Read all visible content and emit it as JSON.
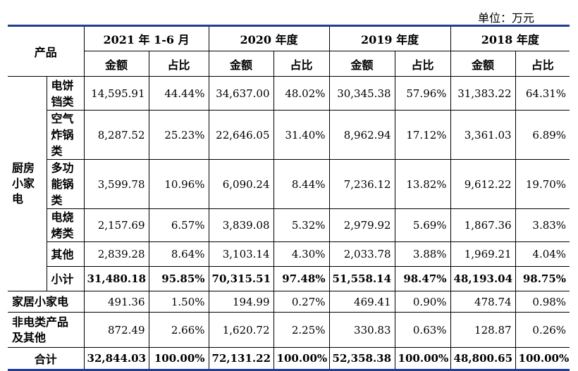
{
  "unit_label": "单位：万元",
  "headers": {
    "product": "产品",
    "periods": [
      "2021 年 1-6 月",
      "2020 年度",
      "2019 年度",
      "2018 年度"
    ],
    "amount": "金额",
    "ratio": "占比"
  },
  "group_label": "厨房小家电",
  "rows": [
    {
      "name": "电饼铛类",
      "values": [
        "14,595.91",
        "44.44%",
        "34,637.00",
        "48.02%",
        "30,345.38",
        "57.96%",
        "31,383.22",
        "64.31%"
      ]
    },
    {
      "name": "空气炸锅类",
      "values": [
        "8,287.52",
        "25.23%",
        "22,646.05",
        "31.40%",
        "8,962.94",
        "17.12%",
        "3,361.03",
        "6.89%"
      ]
    },
    {
      "name": "多功能锅类",
      "values": [
        "3,599.78",
        "10.96%",
        "6,090.24",
        "8.44%",
        "7,236.12",
        "13.82%",
        "9,612.22",
        "19.70%"
      ]
    },
    {
      "name": "电烧烤类",
      "values": [
        "2,157.69",
        "6.57%",
        "3,839.08",
        "5.32%",
        "2,979.92",
        "5.69%",
        "1,867.36",
        "3.83%"
      ]
    },
    {
      "name": "其他",
      "values": [
        "2,839.28",
        "8.64%",
        "3,103.14",
        "4.30%",
        "2,033.78",
        "3.88%",
        "1,969.21",
        "4.04%"
      ]
    },
    {
      "name": "小计",
      "values": [
        "31,480.18",
        "95.85%",
        "70,315.51",
        "97.48%",
        "51,558.14",
        "98.47%",
        "48,193.04",
        "98.75%"
      ]
    }
  ],
  "other_rows": [
    {
      "name": "家居小家电",
      "values": [
        "491.36",
        "1.50%",
        "194.99",
        "0.27%",
        "469.41",
        "0.90%",
        "478.74",
        "0.98%"
      ]
    },
    {
      "name": "非电类产品及其他",
      "values": [
        "872.49",
        "2.66%",
        "1,620.72",
        "2.25%",
        "330.83",
        "0.63%",
        "128.87",
        "0.26%"
      ]
    }
  ],
  "total_row": {
    "name": "合计",
    "values": [
      "32,844.03",
      "100.00%",
      "72,131.22",
      "100.00%",
      "52,358.38",
      "100.00%",
      "48,800.65",
      "100.00%"
    ]
  }
}
